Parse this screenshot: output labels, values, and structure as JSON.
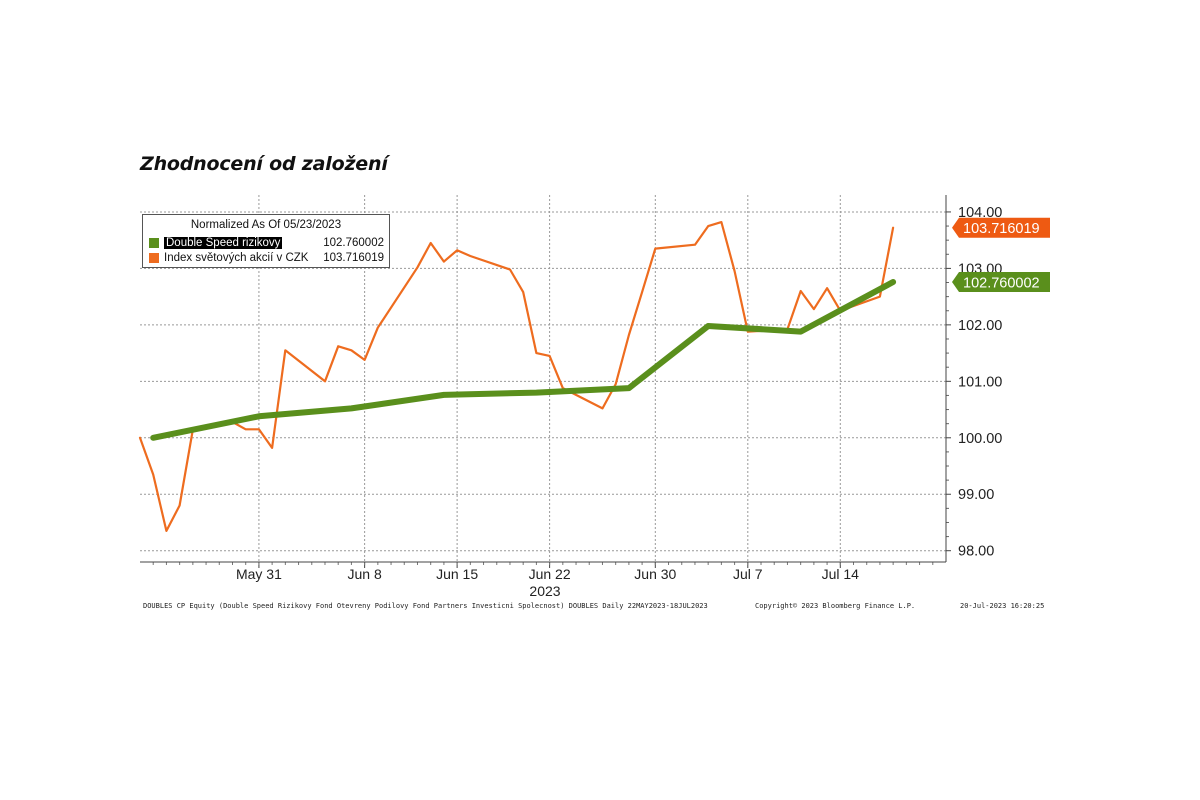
{
  "page_title": "Zhodnocení od založení",
  "legend": {
    "header": "Normalized As Of 05/23/2023",
    "series": [
      {
        "name": "Double Speed rizikovy",
        "value": "102.760002",
        "color": "#5a8f1c"
      },
      {
        "name": "Index světových akcií v CZK",
        "value": "103.716019",
        "color": "#ee6c1f"
      }
    ]
  },
  "badges": {
    "orange": "103.716019",
    "green": "102.760002"
  },
  "footer": {
    "source": "DOUBLES CP Equity (Double Speed Rizikovy Fond Otevreny Podilovy Fond Partners Investicni Spolecnost) DOUBLES  Daily 22MAY2023-18JUL2023",
    "copyright": "Copyright© 2023 Bloomberg Finance L.P.",
    "timestamp": "20-Jul-2023 16:20:25"
  },
  "chart_data": {
    "type": "line",
    "xlabel": "2023",
    "ylabel": "",
    "ylim": [
      97.8,
      104.3
    ],
    "yticks": [
      "98.00",
      "99.00",
      "100.00",
      "101.00",
      "102.00",
      "103.00",
      "104.00"
    ],
    "ytick_values": [
      98,
      99,
      100,
      101,
      102,
      103,
      104
    ],
    "xlim": [
      "2023-05-22",
      "2023-07-22"
    ],
    "xticks": [
      {
        "label": "May 31",
        "date": "2023-05-31"
      },
      {
        "label": "Jun 8",
        "date": "2023-06-08"
      },
      {
        "label": "Jun 15",
        "date": "2023-06-15"
      },
      {
        "label": "Jun 22",
        "date": "2023-06-22"
      },
      {
        "label": "Jun 30",
        "date": "2023-06-30"
      },
      {
        "label": "Jul 7",
        "date": "2023-07-07"
      },
      {
        "label": "Jul 14",
        "date": "2023-07-14"
      }
    ],
    "grid": true,
    "legend_position": "top-left",
    "series": [
      {
        "name": "Double Speed rizikovy",
        "color": "#5a8f1c",
        "points": [
          [
            "2023-05-23",
            100.0
          ],
          [
            "2023-05-31",
            100.38
          ],
          [
            "2023-06-07",
            100.52
          ],
          [
            "2023-06-14",
            100.76
          ],
          [
            "2023-06-21",
            100.8
          ],
          [
            "2023-06-28",
            100.88
          ],
          [
            "2023-07-04",
            101.98
          ],
          [
            "2023-07-11",
            101.88
          ],
          [
            "2023-07-18",
            102.76
          ]
        ]
      },
      {
        "name": "Index světových akcií v CZK",
        "color": "#ee6c1f",
        "points": [
          [
            "2023-05-22",
            100.0
          ],
          [
            "2023-05-23",
            99.35
          ],
          [
            "2023-05-24",
            98.35
          ],
          [
            "2023-05-25",
            98.8
          ],
          [
            "2023-05-26",
            100.15
          ],
          [
            "2023-05-29",
            100.28
          ],
          [
            "2023-05-30",
            100.15
          ],
          [
            "2023-05-31",
            100.15
          ],
          [
            "2023-06-01",
            99.82
          ],
          [
            "2023-06-02",
            101.55
          ],
          [
            "2023-06-05",
            101.0
          ],
          [
            "2023-06-06",
            101.62
          ],
          [
            "2023-06-07",
            101.55
          ],
          [
            "2023-06-08",
            101.38
          ],
          [
            "2023-06-09",
            101.95
          ],
          [
            "2023-06-12",
            103.02
          ],
          [
            "2023-06-13",
            103.45
          ],
          [
            "2023-06-14",
            103.12
          ],
          [
            "2023-06-15",
            103.32
          ],
          [
            "2023-06-16",
            103.22
          ],
          [
            "2023-06-19",
            102.98
          ],
          [
            "2023-06-20",
            102.58
          ],
          [
            "2023-06-21",
            101.5
          ],
          [
            "2023-06-22",
            101.45
          ],
          [
            "2023-06-23",
            100.88
          ],
          [
            "2023-06-26",
            100.52
          ],
          [
            "2023-06-27",
            100.95
          ],
          [
            "2023-06-28",
            101.82
          ],
          [
            "2023-06-29",
            102.58
          ],
          [
            "2023-06-30",
            103.35
          ],
          [
            "2023-07-03",
            103.42
          ],
          [
            "2023-07-04",
            103.75
          ],
          [
            "2023-07-05",
            103.82
          ],
          [
            "2023-07-06",
            102.95
          ],
          [
            "2023-07-07",
            101.88
          ],
          [
            "2023-07-10",
            101.92
          ],
          [
            "2023-07-11",
            102.6
          ],
          [
            "2023-07-12",
            102.28
          ],
          [
            "2023-07-13",
            102.65
          ],
          [
            "2023-07-14",
            102.25
          ],
          [
            "2023-07-17",
            102.5
          ],
          [
            "2023-07-18",
            103.72
          ]
        ]
      }
    ]
  }
}
